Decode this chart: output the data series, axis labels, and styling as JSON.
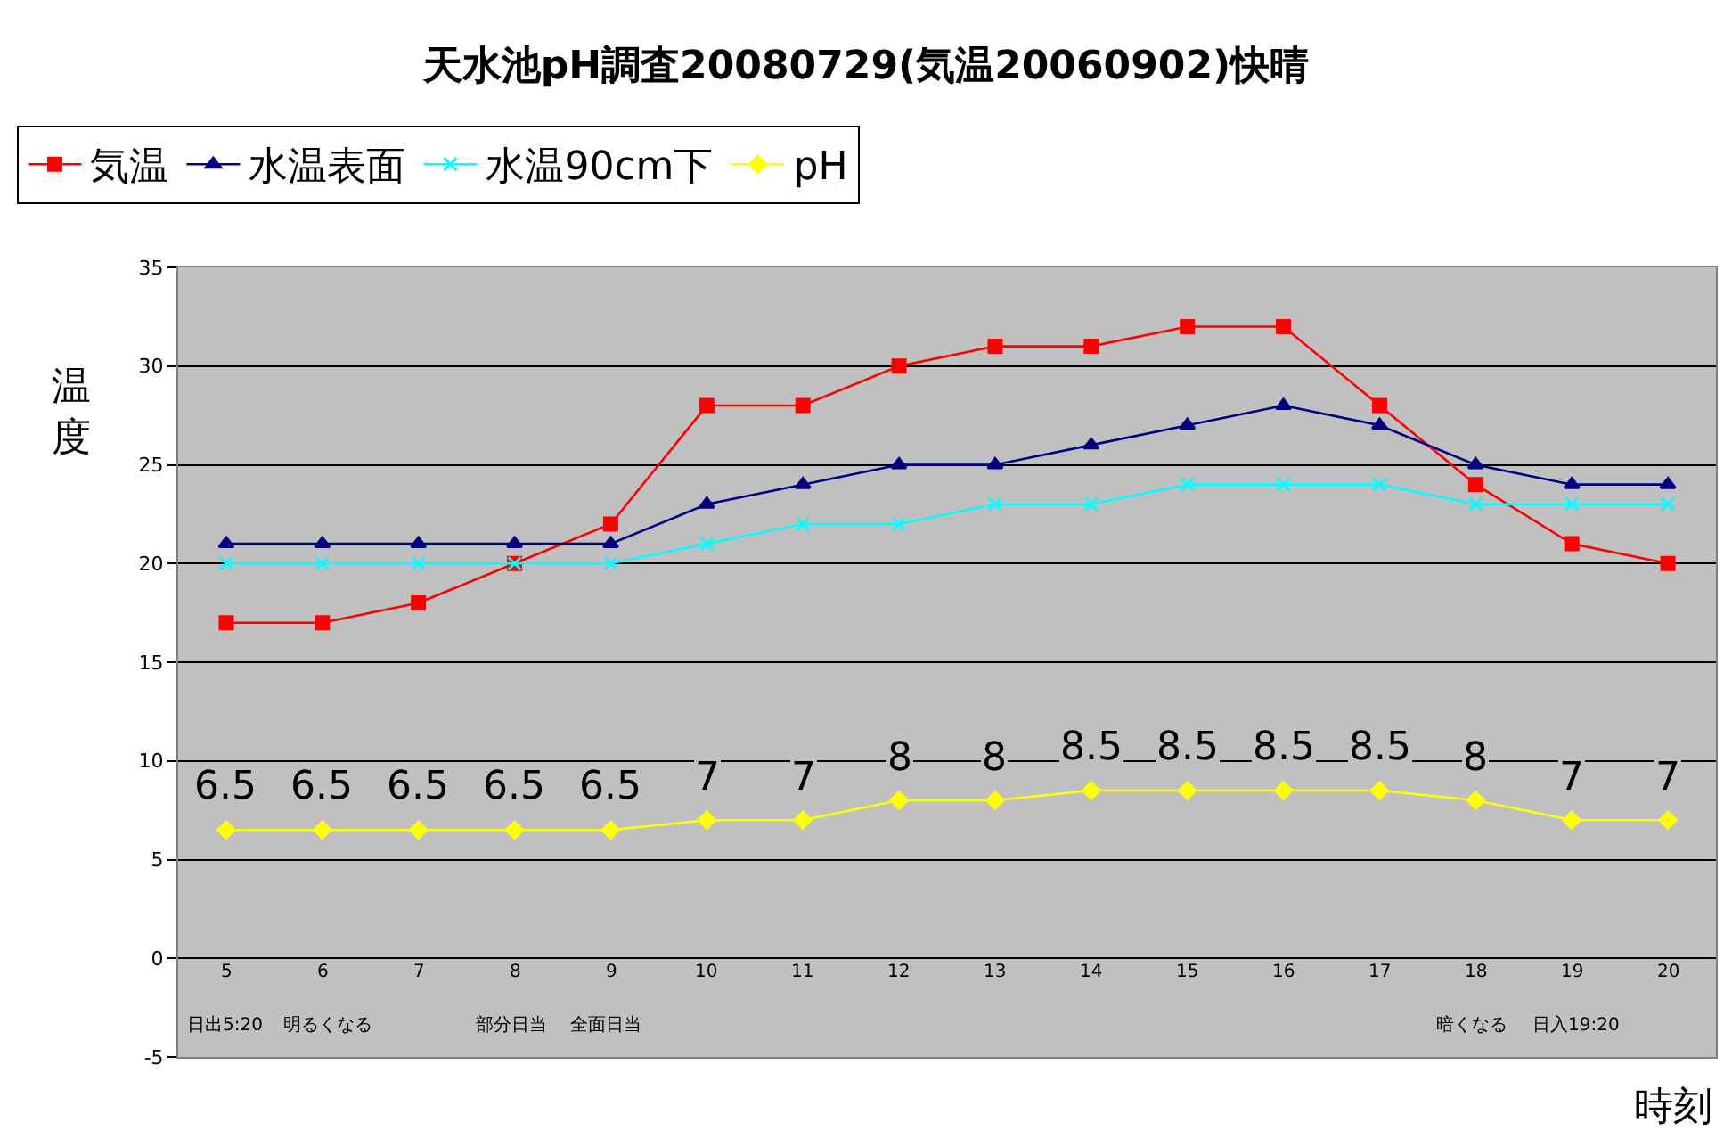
{
  "chart_data": {
    "type": "line",
    "title": "天水池pH調査20080729(気温20060902)快晴",
    "xlabel": "時刻",
    "ylabel": "温度",
    "categories": [
      "5",
      "6",
      "7",
      "8",
      "9",
      "10",
      "11",
      "12",
      "13",
      "14",
      "15",
      "16",
      "17",
      "18",
      "19",
      "20"
    ],
    "series": [
      {
        "name": "気温",
        "color": "#ff0000",
        "marker": "square",
        "values": [
          17,
          17,
          18,
          20,
          22,
          28,
          28,
          30,
          31,
          31,
          32,
          32,
          28,
          24,
          21,
          20
        ]
      },
      {
        "name": "水温表面",
        "color": "#000080",
        "marker": "triangle",
        "values": [
          21,
          21,
          21,
          21,
          21,
          23,
          24,
          25,
          25,
          26,
          27,
          28,
          27,
          25,
          24,
          24
        ]
      },
      {
        "name": "水温90cm下",
        "color": "#00ffff",
        "marker": "cross",
        "values": [
          20,
          20,
          20,
          20,
          20,
          21,
          22,
          22,
          23,
          23,
          24,
          24,
          24,
          23,
          23,
          23
        ]
      },
      {
        "name": "pH",
        "color": "#ffff00",
        "marker": "diamond",
        "values": [
          6.5,
          6.5,
          6.5,
          6.5,
          6.5,
          7,
          7,
          8,
          8,
          8.5,
          8.5,
          8.5,
          8.5,
          8,
          7,
          7
        ],
        "value_labels": [
          "6.5",
          "6.5",
          "6.5",
          "6.5",
          "6.5",
          "7",
          "7",
          "8",
          "8",
          "8.5",
          "8.5",
          "8.5",
          "8.5",
          "8",
          "7",
          "7"
        ]
      }
    ],
    "ylim": [
      -5,
      35
    ],
    "yticks": [
      -5,
      0,
      5,
      10,
      15,
      20,
      25,
      30,
      35
    ],
    "grid": "y",
    "legend": "top left",
    "annotations": [
      "日出5:20",
      "明るくなる",
      "部分日当",
      "全面日当",
      "暗くなる",
      "日入19:20"
    ]
  }
}
